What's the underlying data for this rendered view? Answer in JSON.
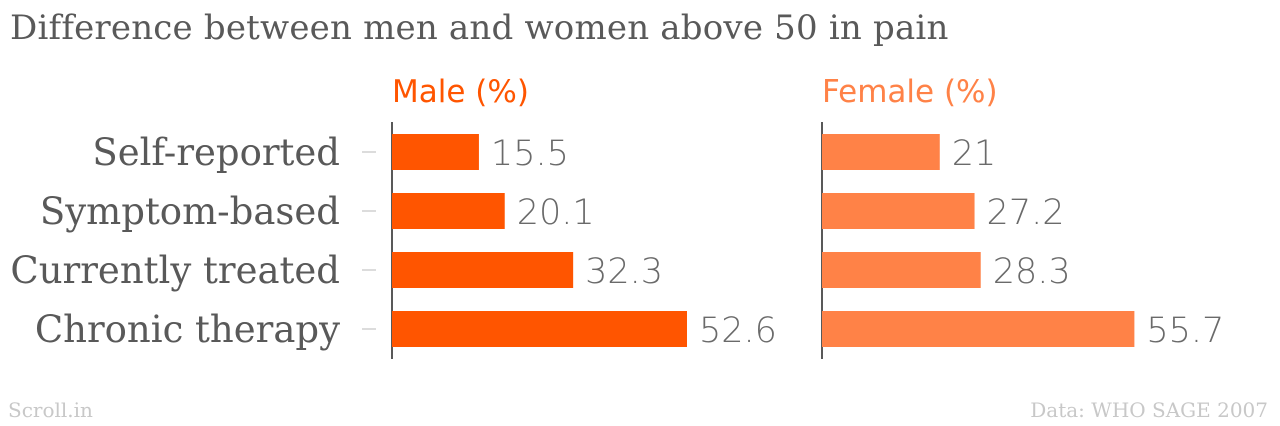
{
  "title": "Difference between men and women above 50 in pain",
  "footer": {
    "left": "Scroll.in",
    "right": "Data: WHO SAGE 2007"
  },
  "colors": {
    "male": "#ff5500",
    "female": "#ff8247",
    "text": "#595959",
    "value_text": "#6a6a6a",
    "footer": "#c8c8c8",
    "axis": "#222222",
    "tick": "#d0d0d0"
  },
  "chart_data": {
    "type": "bar",
    "orientation": "horizontal",
    "title": "Difference between men and women above 50 in pain",
    "categories": [
      "Self-reported",
      "Symptom-based",
      "Currently treated",
      "Chronic therapy"
    ],
    "series": [
      {
        "name": "Male (%)",
        "values": [
          15.5,
          20.1,
          32.3,
          52.6
        ],
        "color": "#ff5500"
      },
      {
        "name": "Female (%)",
        "values": [
          21,
          27.2,
          28.3,
          55.7
        ],
        "color": "#ff8247"
      }
    ],
    "value_labels": {
      "Male (%)": [
        "15.5",
        "20.1",
        "32.3",
        "52.6"
      ],
      "Female (%)": [
        "21",
        "27.2",
        "28.3",
        "55.7"
      ]
    },
    "xlim": [
      0,
      70
    ],
    "grid": false,
    "legend": "panel headers"
  }
}
